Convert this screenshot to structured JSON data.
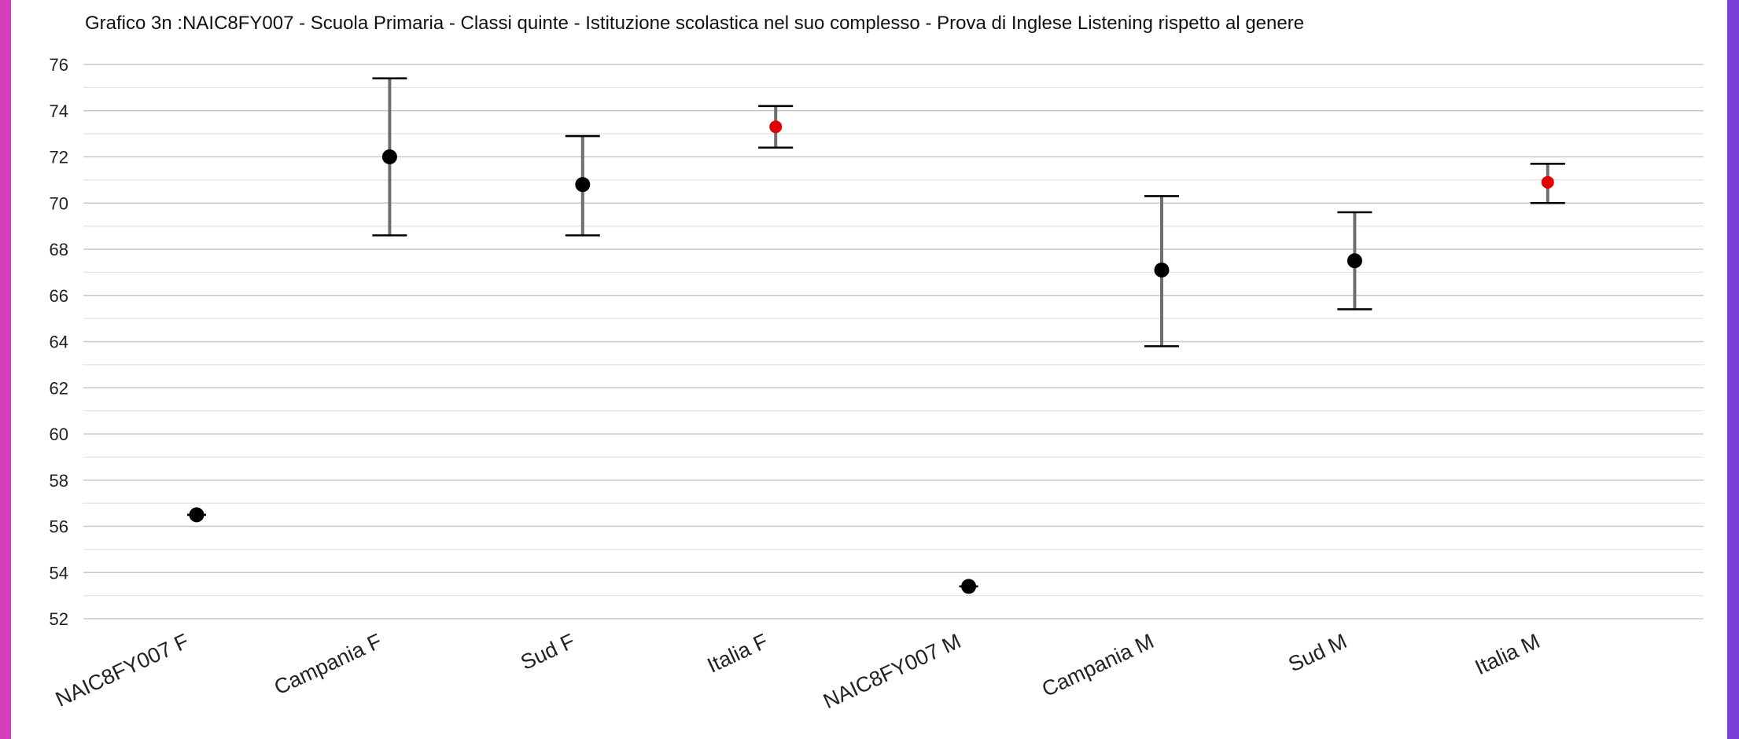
{
  "chart_data": {
    "type": "scatter",
    "title": "Grafico 3n :NAIC8FY007 - Scuola Primaria - Classi quinte - Istituzione scolastica nel suo complesso - Prova di Inglese Listening rispetto al genere",
    "xlabel": "",
    "ylabel": "",
    "ylim": [
      52,
      76
    ],
    "yticks": [
      52,
      54,
      56,
      58,
      60,
      62,
      64,
      66,
      68,
      70,
      72,
      74,
      76
    ],
    "grid": true,
    "minor_grid": true,
    "categories": [
      "NAIC8FY007 F",
      "Campania F",
      "Sud F",
      "Italia F",
      "NAIC8FY007 M",
      "Campania M",
      "Sud M",
      "Italia M"
    ],
    "values": [
      56.5,
      72.0,
      70.8,
      73.3,
      53.4,
      67.1,
      67.5,
      70.9
    ],
    "lower": [
      56.5,
      68.6,
      68.6,
      72.4,
      53.4,
      63.8,
      65.4,
      70.0
    ],
    "upper": [
      56.5,
      75.4,
      72.9,
      74.2,
      53.4,
      70.3,
      69.6,
      71.7
    ],
    "point_colors": [
      "#000000",
      "#000000",
      "#000000",
      "#e00000",
      "#000000",
      "#000000",
      "#000000",
      "#e00000"
    ],
    "errorbar_color": "#6e6e6e",
    "cap_color": "#000000"
  }
}
